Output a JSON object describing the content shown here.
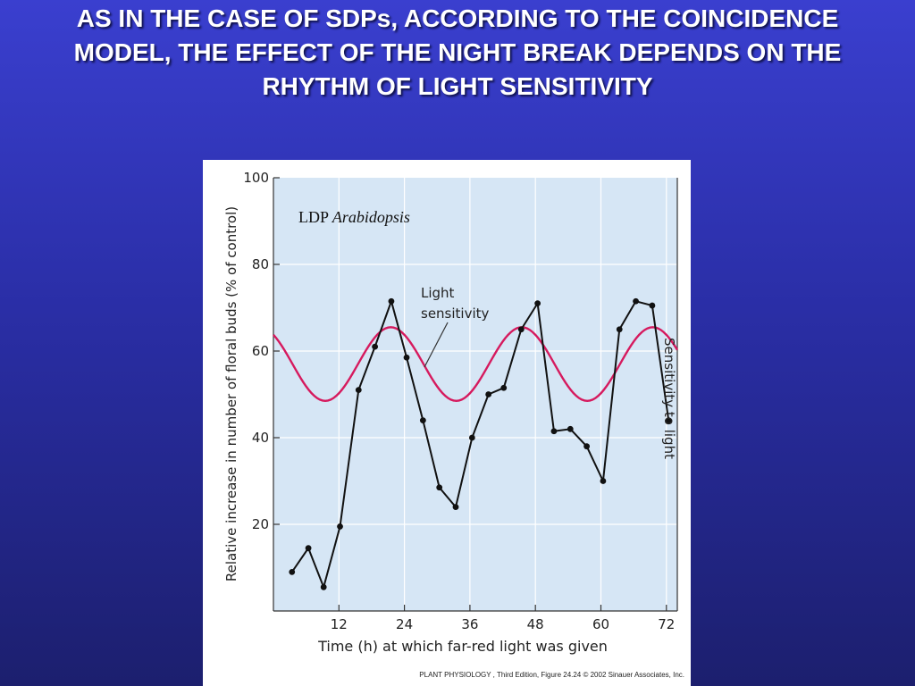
{
  "slide": {
    "title": "AS IN THE CASE OF SDPs, ACCORDING TO THE COINCIDENCE MODEL, THE EFFECT OF THE NIGHT BREAK DEPENDS ON THE RHYTHM OF LIGHT SENSITIVITY"
  },
  "chart_data": {
    "type": "line",
    "title": "",
    "annotation_ldp": "LDP",
    "annotation_species": "Arabidopsis",
    "xlabel": "Time (h) at which far-red light was given",
    "ylabel": "Relative increase in number of floral buds (% of control)",
    "y2label": "Sensitivity to light",
    "xlim": [
      0,
      74
    ],
    "ylim": [
      0,
      100
    ],
    "xticks": [
      12,
      24,
      36,
      48,
      60,
      72
    ],
    "yticks": [
      20,
      40,
      60,
      80,
      100
    ],
    "grid": true,
    "series": [
      {
        "name": "",
        "marker": "circle",
        "color": "#111111",
        "x": [
          3.4,
          6.4,
          9.2,
          12.2,
          15.6,
          18.6,
          21.6,
          24.4,
          27.4,
          30.4,
          33.4,
          36.4,
          39.4,
          42.2,
          45.4,
          48.4,
          51.4,
          54.4,
          57.4,
          60.4,
          63.4,
          66.4,
          69.4,
          72.4
        ],
        "y": [
          9,
          14.5,
          5.5,
          19.5,
          51,
          61,
          71.5,
          58.5,
          44,
          28.5,
          24,
          40,
          50,
          51.5,
          65,
          71,
          41.5,
          42,
          38,
          30,
          65,
          71.5,
          70.5,
          44
        ]
      },
      {
        "name": "Light sensitivity",
        "color": "#d61a5e",
        "curve": "sine",
        "period_h": 24,
        "peak_times_h": [
          21.5,
          45.5,
          69.5
        ],
        "min": 48.5,
        "max": 65.5,
        "x_range": [
          0,
          74
        ]
      }
    ],
    "series_label_line1": "Light",
    "series_label_line2": "sensitivity",
    "credit": "PLANT PHYSIOLOGY , Third Edition, Figure 24.24  © 2002 Sinauer Associates, Inc."
  }
}
